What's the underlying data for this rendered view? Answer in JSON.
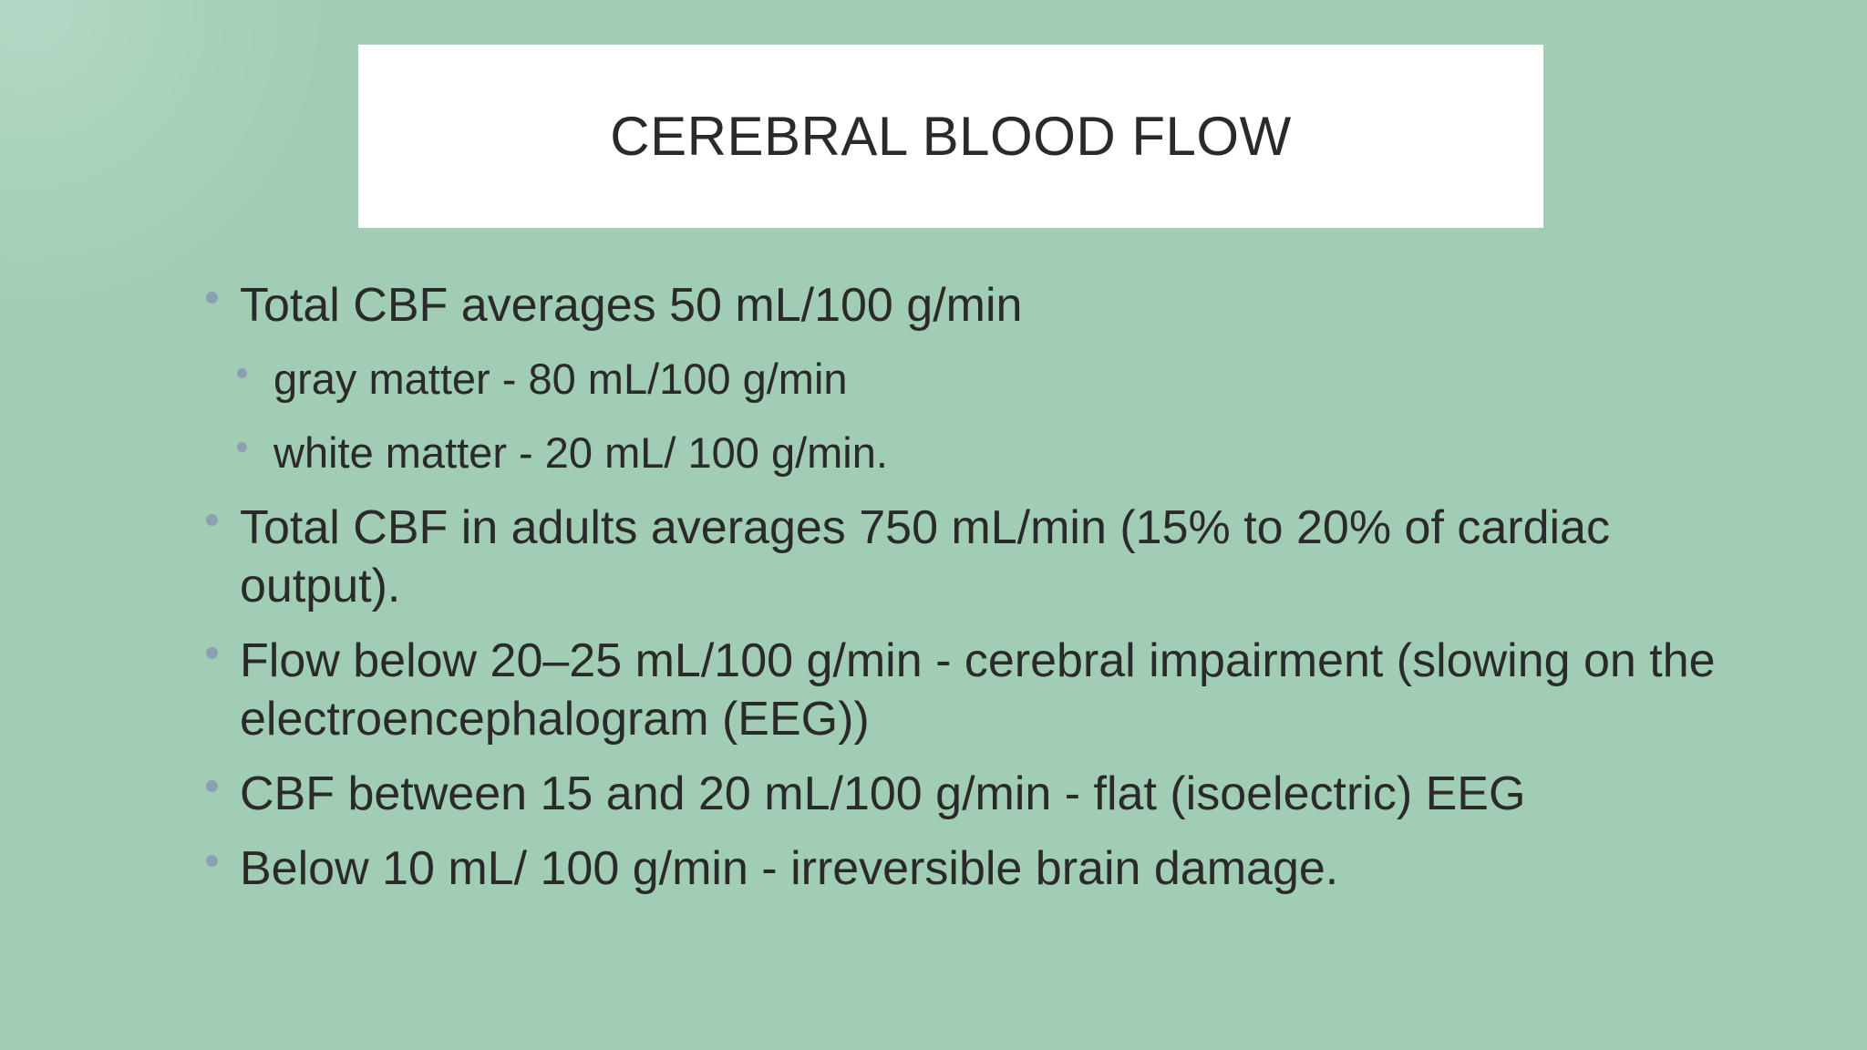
{
  "slide": {
    "title": "CEREBRAL BLOOD FLOW",
    "bullets": [
      {
        "level": 1,
        "text": "Total CBF averages 50 mL/100 g/min"
      },
      {
        "level": 2,
        "text": "gray matter - 80 mL/100 g/min"
      },
      {
        "level": 2,
        "text": "white matter - 20 mL/ 100 g/min."
      },
      {
        "level": 1,
        "text": "Total CBF in adults averages 750 mL/min (15% to 20% of cardiac output)."
      },
      {
        "level": 1,
        "text": "Flow below 20–25 mL/100 g/min - cerebral impairment (slowing on the electroencephalogram (EEG))"
      },
      {
        "level": 1,
        "text": "CBF between 15 and 20 mL/100 g/min - flat (isoelectric) EEG"
      },
      {
        "level": 1,
        "text": "Below 10 mL/ 100 g/min - irreversible brain damage."
      }
    ],
    "colors": {
      "background": "#a1cdb5",
      "title_box": "#ffffff",
      "text": "#2a2a2a",
      "bullet_dot": "#8ba1b1"
    }
  }
}
